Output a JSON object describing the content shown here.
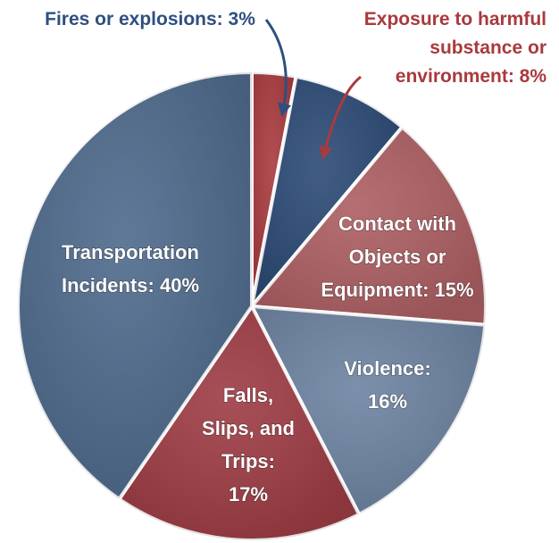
{
  "chart_data": {
    "type": "pie",
    "start_angle_deg": 0,
    "direction": "clockwise",
    "slices": [
      {
        "name": "Fires or explosions",
        "value": 3,
        "label_lines": [
          "Fires or explosions: 3%"
        ],
        "color": "#a83a3e",
        "callout": true,
        "callout_color": "#2e4f80"
      },
      {
        "name": "Exposure to harmful substance or environment",
        "value": 8,
        "label_lines": [
          "Exposure to harmful",
          "substance or",
          "environment: 8%"
        ],
        "color": "#2c4a75",
        "callout": true,
        "callout_color": "#a83a3e"
      },
      {
        "name": "Contact with Objects or Equipment",
        "value": 15,
        "label_lines": [
          "Contact with",
          "Objects or",
          "Equipment: 15%"
        ],
        "color": "#ad5f63"
      },
      {
        "name": "Violence",
        "value": 16,
        "label_lines": [
          "Violence:",
          "16%"
        ],
        "color": "#6d83a1"
      },
      {
        "name": "Falls, Slips, and Trips",
        "value": 17,
        "label_lines": [
          "Falls,",
          "Slips, and",
          "Trips:",
          "17%"
        ],
        "color": "#9e3c44"
      },
      {
        "name": "Transportation Incidents",
        "value": 40,
        "label_lines": [
          "Transportation",
          "Incidents: 40%"
        ],
        "color": "#4e6a8c"
      }
    ]
  }
}
